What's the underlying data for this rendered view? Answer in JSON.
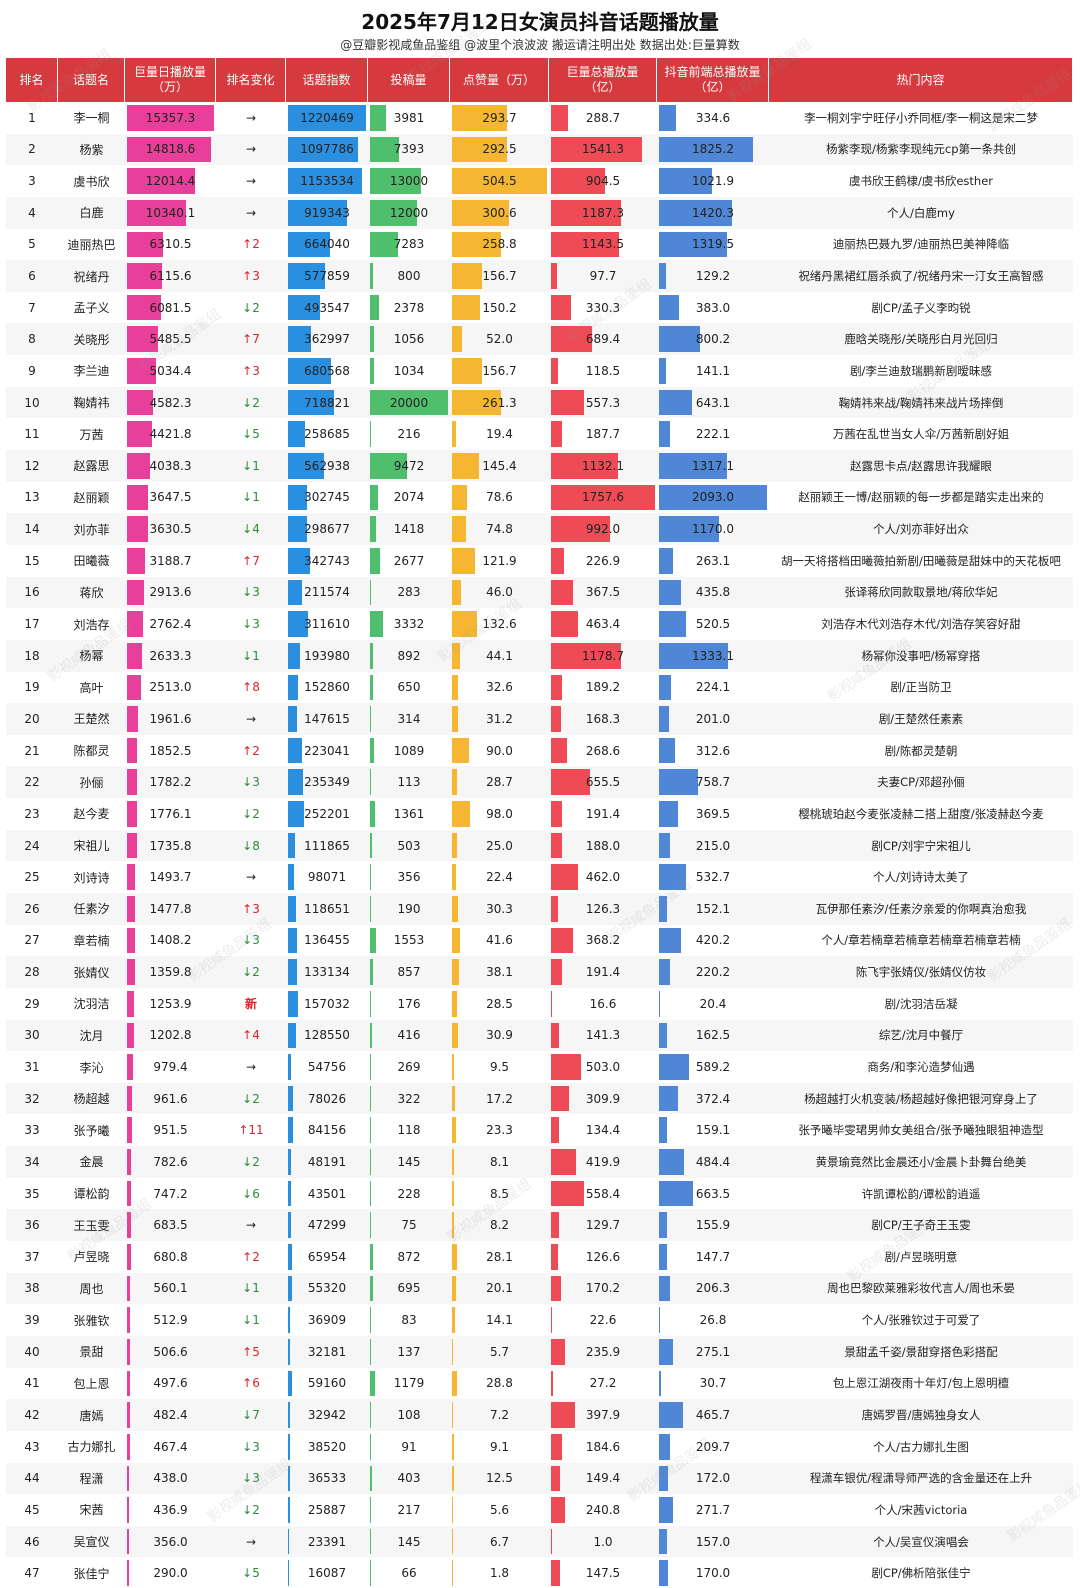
{
  "header": {
    "title": "2025年7月12日女演员抖音话题播放量",
    "subtitle": "@豆瓣影视咸鱼品鉴组 @波里个浪波波 搬运请注明出处 数据出处:巨量算数"
  },
  "colors": {
    "header_bg": "#d73a3e",
    "daily_play": "#e8409a",
    "topic_index": "#2b8fe0",
    "posts": "#4fbf6e",
    "likes": "#f5b731",
    "total_play": "#ee4b56",
    "douyin_play": "#4f86d6"
  },
  "chart_data": {
    "type": "table",
    "columns": [
      "排名",
      "话题名",
      "巨量日播放量\n（万）",
      "排名变化",
      "话题指数",
      "投稿量",
      "点赞量（万）",
      "巨量总播放量\n（亿）",
      "抖音前端总播放量\n（亿）",
      "热门内容"
    ],
    "rows": [
      {
        "rank": "1",
        "name": "李一桐",
        "daily": 15357.3,
        "change": "→",
        "index": 1220469,
        "posts": 3981,
        "likes": 293.7,
        "total": 288.7,
        "douyin": 334.6,
        "hot": "李一桐刘宇宁旺仔小乔同框/李一桐这是宋二梦"
      },
      {
        "rank": "2",
        "name": "杨紫",
        "daily": 14818.6,
        "change": "→",
        "index": 1097786,
        "posts": 7393,
        "likes": 292.5,
        "total": 1541.3,
        "douyin": 1825.2,
        "hot": "杨紫李现/杨紫李现纯元cp第一条共创"
      },
      {
        "rank": "3",
        "name": "虞书欣",
        "daily": 12014.4,
        "change": "→",
        "index": 1153534,
        "posts": 13000,
        "likes": 504.5,
        "total": 904.5,
        "douyin": 1021.9,
        "hot": "虞书欣王鹤棣/虞书欣esther"
      },
      {
        "rank": "4",
        "name": "白鹿",
        "daily": 10340.1,
        "change": "→",
        "index": 919343,
        "posts": 12000,
        "likes": 300.6,
        "total": 1187.3,
        "douyin": 1420.3,
        "hot": "个人/白鹿my"
      },
      {
        "rank": "5",
        "name": "迪丽热巴",
        "daily": 6310.5,
        "change": "↑2",
        "index": 664040,
        "posts": 7283,
        "likes": 258.8,
        "total": 1143.5,
        "douyin": 1319.5,
        "hot": "迪丽热巴聂九罗/迪丽热巴美神降临"
      },
      {
        "rank": "6",
        "name": "祝绪丹",
        "daily": 6115.6,
        "change": "↑3",
        "index": 577859,
        "posts": 800,
        "likes": 156.7,
        "total": 97.7,
        "douyin": 129.2,
        "hot": "祝绪丹黑裙红唇杀疯了/祝绪丹宋一汀女王高智感"
      },
      {
        "rank": "7",
        "name": "孟子义",
        "daily": 6081.5,
        "change": "↓2",
        "index": 493547,
        "posts": 2378,
        "likes": 150.2,
        "total": 330.3,
        "douyin": 383.0,
        "hot": "剧CP/孟子义李昀锐"
      },
      {
        "rank": "8",
        "name": "关晓彤",
        "daily": 5485.5,
        "change": "↑7",
        "index": 362997,
        "posts": 1056,
        "likes": 52.0,
        "total": 689.4,
        "douyin": 800.2,
        "hot": "鹿晗关晓彤/关晓彤白月光回归"
      },
      {
        "rank": "9",
        "name": "李兰迪",
        "daily": 5034.4,
        "change": "↑3",
        "index": 680568,
        "posts": 1034,
        "likes": 156.7,
        "total": 118.5,
        "douyin": 141.1,
        "hot": "剧/李兰迪敖瑞鹏新剧暧昧感"
      },
      {
        "rank": "10",
        "name": "鞠婧祎",
        "daily": 4582.3,
        "change": "↓2",
        "index": 718821,
        "posts": 20000,
        "likes": 261.3,
        "total": 557.3,
        "douyin": 643.1,
        "hot": "鞠婧祎来战/鞠婧祎来战片场摔倒"
      },
      {
        "rank": "11",
        "name": "万茜",
        "daily": 4421.8,
        "change": "↓5",
        "index": 258685,
        "posts": 216,
        "likes": 19.4,
        "total": 187.7,
        "douyin": 222.1,
        "hot": "万茜在乱世当女人伞/万茜新剧好姐"
      },
      {
        "rank": "12",
        "name": "赵露思",
        "daily": 4038.3,
        "change": "↓1",
        "index": 562938,
        "posts": 9472,
        "likes": 145.4,
        "total": 1132.1,
        "douyin": 1317.1,
        "hot": "赵露思卡点/赵露思许我耀眼"
      },
      {
        "rank": "13",
        "name": "赵丽颖",
        "daily": 3647.5,
        "change": "↓1",
        "index": 302745,
        "posts": 2074,
        "likes": 78.6,
        "total": 1757.6,
        "douyin": 2093.0,
        "hot": "赵丽颖王一博/赵丽颖的每一步都是踏实走出来的"
      },
      {
        "rank": "14",
        "name": "刘亦菲",
        "daily": 3630.5,
        "change": "↓4",
        "index": 298677,
        "posts": 1418,
        "likes": 74.8,
        "total": 992.0,
        "douyin": 1170.0,
        "hot": "个人/刘亦菲好出众"
      },
      {
        "rank": "15",
        "name": "田曦薇",
        "daily": 3188.7,
        "change": "↑7",
        "index": 342743,
        "posts": 2677,
        "likes": 121.9,
        "total": 226.9,
        "douyin": 263.1,
        "hot": "胡一天将搭档田曦薇拍新剧/田曦薇是甜妹中的天花板吧"
      },
      {
        "rank": "16",
        "name": "蒋欣",
        "daily": 2913.6,
        "change": "↓3",
        "index": 211574,
        "posts": 283,
        "likes": 46.0,
        "total": 367.5,
        "douyin": 435.8,
        "hot": "张译蒋欣同款取景地/蒋欣华妃"
      },
      {
        "rank": "17",
        "name": "刘浩存",
        "daily": 2762.4,
        "change": "↓3",
        "index": 311610,
        "posts": 3332,
        "likes": 132.6,
        "total": 463.4,
        "douyin": 520.5,
        "hot": "刘浩存木代刘浩存木代/刘浩存笑容好甜"
      },
      {
        "rank": "18",
        "name": "杨幂",
        "daily": 2633.3,
        "change": "↓1",
        "index": 193980,
        "posts": 892,
        "likes": 44.1,
        "total": 1178.7,
        "douyin": 1333.1,
        "hot": "杨幂你没事吧/杨幂穿搭"
      },
      {
        "rank": "19",
        "name": "高叶",
        "daily": 2513.0,
        "change": "↑8",
        "index": 152860,
        "posts": 650,
        "likes": 32.6,
        "total": 189.2,
        "douyin": 224.1,
        "hot": "剧/正当防卫"
      },
      {
        "rank": "20",
        "name": "王楚然",
        "daily": 1961.6,
        "change": "→",
        "index": 147615,
        "posts": 314,
        "likes": 31.2,
        "total": 168.3,
        "douyin": 201.0,
        "hot": "剧/王楚然任素素"
      },
      {
        "rank": "21",
        "name": "陈都灵",
        "daily": 1852.5,
        "change": "↑2",
        "index": 223041,
        "posts": 1089,
        "likes": 90.0,
        "total": 268.6,
        "douyin": 312.6,
        "hot": "剧/陈都灵楚朝"
      },
      {
        "rank": "22",
        "name": "孙俪",
        "daily": 1782.2,
        "change": "↓3",
        "index": 235349,
        "posts": 113,
        "likes": 28.7,
        "total": 655.5,
        "douyin": 758.7,
        "hot": "夫妻CP/邓超孙俪"
      },
      {
        "rank": "23",
        "name": "赵今麦",
        "daily": 1776.1,
        "change": "↓2",
        "index": 252201,
        "posts": 1361,
        "likes": 98.0,
        "total": 191.4,
        "douyin": 369.5,
        "hot": "樱桃琥珀赵今麦张凌赫二搭上甜度/张凌赫赵今麦"
      },
      {
        "rank": "24",
        "name": "宋祖儿",
        "daily": 1735.8,
        "change": "↓8",
        "index": 111865,
        "posts": 503,
        "likes": 25.0,
        "total": 188.0,
        "douyin": 215.0,
        "hot": "剧CP/刘宇宁宋祖儿"
      },
      {
        "rank": "25",
        "name": "刘诗诗",
        "daily": 1493.7,
        "change": "→",
        "index": 98071,
        "posts": 356,
        "likes": 22.4,
        "total": 462.0,
        "douyin": 532.7,
        "hot": "个人/刘诗诗太美了"
      },
      {
        "rank": "26",
        "name": "任素汐",
        "daily": 1477.8,
        "change": "↑3",
        "index": 118651,
        "posts": 190,
        "likes": 30.3,
        "total": 126.3,
        "douyin": 152.1,
        "hot": "瓦伊那任素汐/任素汐亲爱的你啊真治愈我"
      },
      {
        "rank": "27",
        "name": "章若楠",
        "daily": 1408.2,
        "change": "↓3",
        "index": 136455,
        "posts": 1553,
        "likes": 41.6,
        "total": 368.2,
        "douyin": 420.2,
        "hot": "个人/章若楠章若楠章若楠章若楠章若楠"
      },
      {
        "rank": "28",
        "name": "张婧仪",
        "daily": 1359.8,
        "change": "↓2",
        "index": 133134,
        "posts": 857,
        "likes": 38.1,
        "total": 191.4,
        "douyin": 220.2,
        "hot": "陈飞宇张婧仪/张婧仪仿妆"
      },
      {
        "rank": "29",
        "name": "沈羽洁",
        "daily": 1253.9,
        "change": "新",
        "index": 157032,
        "posts": 176,
        "likes": 28.5,
        "total": 16.6,
        "douyin": 20.4,
        "hot": "剧/沈羽洁岳凝"
      },
      {
        "rank": "30",
        "name": "沈月",
        "daily": 1202.8,
        "change": "↑4",
        "index": 128550,
        "posts": 416,
        "likes": 30.9,
        "total": 141.3,
        "douyin": 162.5,
        "hot": "综艺/沈月中餐厅"
      },
      {
        "rank": "31",
        "name": "李沁",
        "daily": 979.4,
        "change": "→",
        "index": 54756,
        "posts": 269,
        "likes": 9.5,
        "total": 503.0,
        "douyin": 589.2,
        "hot": "商务/和李沁造梦仙遇"
      },
      {
        "rank": "32",
        "name": "杨超越",
        "daily": 961.6,
        "change": "↓2",
        "index": 78026,
        "posts": 322,
        "likes": 17.2,
        "total": 309.9,
        "douyin": 372.4,
        "hot": "杨超越打火机变装/杨超越好像把银河穿身上了"
      },
      {
        "rank": "33",
        "name": "张予曦",
        "daily": 951.5,
        "change": "↑11",
        "index": 84156,
        "posts": 118,
        "likes": 23.3,
        "total": 134.4,
        "douyin": 159.1,
        "hot": "张予曦毕雯珺男帅女美组合/张予曦独眼狙神造型"
      },
      {
        "rank": "34",
        "name": "金晨",
        "daily": 782.6,
        "change": "↓2",
        "index": 48191,
        "posts": 145,
        "likes": 8.1,
        "total": 419.9,
        "douyin": 484.4,
        "hot": "黄景瑜竟然比金晨还小/金晨卜卦舞台绝美"
      },
      {
        "rank": "35",
        "name": "谭松韵",
        "daily": 747.2,
        "change": "↓6",
        "index": 43501,
        "posts": 228,
        "likes": 8.5,
        "total": 558.4,
        "douyin": 663.5,
        "hot": "许凯谭松韵/谭松韵逍遥"
      },
      {
        "rank": "36",
        "name": "王玉雯",
        "daily": 683.5,
        "change": "→",
        "index": 47299,
        "posts": 75,
        "likes": 8.2,
        "total": 129.7,
        "douyin": 155.9,
        "hot": "剧CP/王子奇王玉雯"
      },
      {
        "rank": "37",
        "name": "卢昱晓",
        "daily": 680.8,
        "change": "↑2",
        "index": 65954,
        "posts": 872,
        "likes": 28.1,
        "total": 126.6,
        "douyin": 147.7,
        "hot": "剧/卢昱晓明意"
      },
      {
        "rank": "38",
        "name": "周也",
        "daily": 560.1,
        "change": "↓1",
        "index": 55320,
        "posts": 695,
        "likes": 20.1,
        "total": 170.2,
        "douyin": 206.3,
        "hot": "周也巴黎欧莱雅彩妆代言人/周也禾晏"
      },
      {
        "rank": "39",
        "name": "张雅钦",
        "daily": 512.9,
        "change": "↓1",
        "index": 36909,
        "posts": 83,
        "likes": 14.1,
        "total": 22.6,
        "douyin": 26.8,
        "hot": "个人/张雅钦过于可爱了"
      },
      {
        "rank": "40",
        "name": "景甜",
        "daily": 506.6,
        "change": "↑5",
        "index": 32181,
        "posts": 137,
        "likes": 5.7,
        "total": 235.9,
        "douyin": 275.1,
        "hot": "景甜孟千姿/景甜穿搭色彩搭配"
      },
      {
        "rank": "41",
        "name": "包上恩",
        "daily": 497.6,
        "change": "↑6",
        "index": 59160,
        "posts": 1179,
        "likes": 28.8,
        "total": 27.2,
        "douyin": 30.7,
        "hot": "包上恩江湖夜雨十年灯/包上恩明檀"
      },
      {
        "rank": "42",
        "name": "唐嫣",
        "daily": 482.4,
        "change": "↓7",
        "index": 32942,
        "posts": 108,
        "likes": 7.2,
        "total": 397.9,
        "douyin": 465.7,
        "hot": "唐嫣罗晋/唐嫣独身女人"
      },
      {
        "rank": "43",
        "name": "古力娜扎",
        "daily": 467.4,
        "change": "↓3",
        "index": 38520,
        "posts": 91,
        "likes": 9.1,
        "total": 184.6,
        "douyin": 209.7,
        "hot": "个人/古力娜扎生图"
      },
      {
        "rank": "44",
        "name": "程潇",
        "daily": 438.0,
        "change": "↓3",
        "index": 36533,
        "posts": 403,
        "likes": 12.5,
        "total": 149.4,
        "douyin": 172.0,
        "hot": "程潇车银优/程潇导师严选的含金量还在上升"
      },
      {
        "rank": "45",
        "name": "宋茜",
        "daily": 436.9,
        "change": "↓2",
        "index": 25887,
        "posts": 217,
        "likes": 5.6,
        "total": 240.8,
        "douyin": 271.7,
        "hot": "个人/宋茜victoria"
      },
      {
        "rank": "46",
        "name": "吴宣仪",
        "daily": 356.0,
        "change": "→",
        "index": 23391,
        "posts": 145,
        "likes": 6.7,
        "total": 1.0,
        "douyin": 157.0,
        "hot": "个人/吴宣仪演唱会"
      },
      {
        "rank": "47",
        "name": "张佳宁",
        "daily": 290.0,
        "change": "↓5",
        "index": 16087,
        "posts": 66,
        "likes": 1.8,
        "total": 147.5,
        "douyin": 170.0,
        "hot": "剧CP/佛析陪张佳宁"
      }
    ]
  },
  "watermark": "影视咸鱼品鉴组"
}
